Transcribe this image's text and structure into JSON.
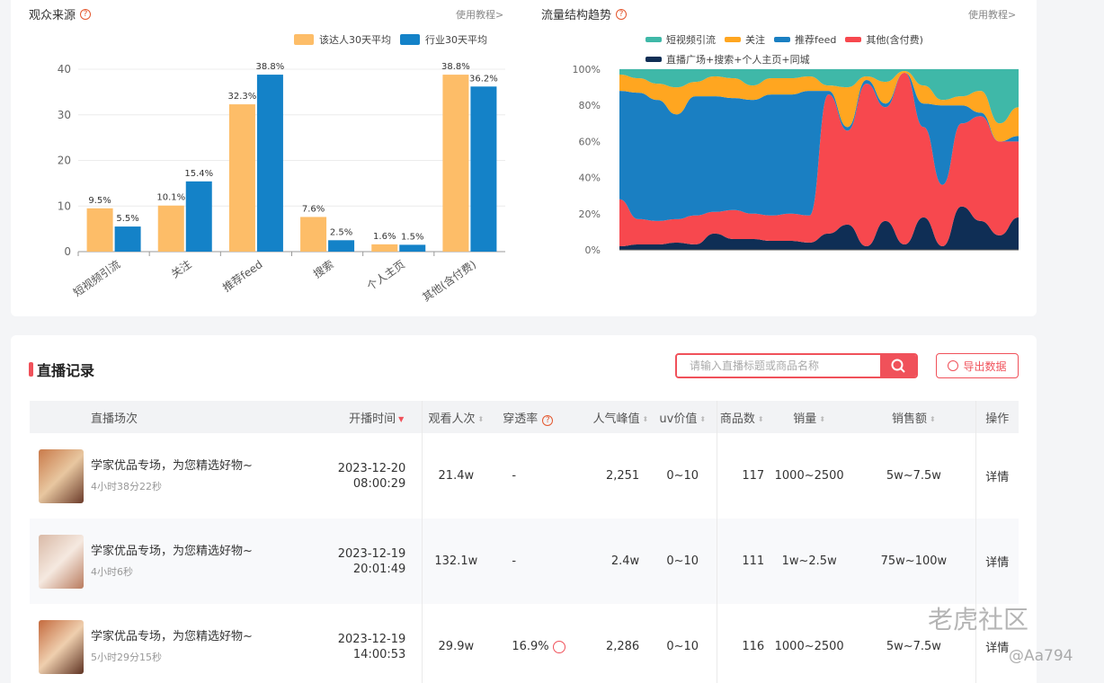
{
  "audience": {
    "title": "观众来源",
    "tutorial": "使用教程>",
    "legend": [
      {
        "label": "该达人30天平均",
        "color": "#fdbd68"
      },
      {
        "label": "行业30天平均",
        "color": "#1482c8"
      }
    ]
  },
  "traffic": {
    "title": "流量结构趋势",
    "tutorial": "使用教程>",
    "legend": [
      {
        "label": "短视频引流",
        "color": "#3fb8a8"
      },
      {
        "label": "关注",
        "color": "#ffa620"
      },
      {
        "label": "推荐feed",
        "color": "#1a7fc2"
      },
      {
        "label": "其他(含付费)",
        "color": "#f7484e"
      },
      {
        "label": "直播广场+搜索+个人主页+同城",
        "color": "#0f2e55"
      }
    ]
  },
  "chart_data": [
    {
      "type": "bar",
      "categories": [
        "短视频引流",
        "关注",
        "推荐feed",
        "搜索",
        "个人主页",
        "其他(含付费)"
      ],
      "series": [
        {
          "name": "该达人30天平均",
          "values": [
            9.5,
            10.1,
            32.3,
            7.6,
            1.6,
            38.8
          ],
          "labels": [
            "9.5%",
            "10.1%",
            "32.3%",
            "7.6%",
            "1.6%",
            "38.8%"
          ]
        },
        {
          "name": "行业30天平均",
          "values": [
            5.5,
            15.4,
            38.8,
            2.5,
            1.5,
            36.2
          ],
          "labels": [
            "5.5%",
            "15.4%",
            "38.8%",
            "2.5%",
            "1.5%",
            "36.2%"
          ]
        }
      ],
      "yticks": [
        "0",
        "10",
        "20",
        "30",
        "40"
      ],
      "ylim": [
        0,
        40
      ]
    },
    {
      "type": "area",
      "stacked": true,
      "yticks": [
        "0%",
        "20%",
        "40%",
        "60%",
        "80%",
        "100%"
      ],
      "ylim": [
        0,
        100
      ],
      "series": [
        {
          "name": "直播广场+搜索+个人主页+同城",
          "values": [
            2,
            3,
            3,
            4,
            3,
            9,
            6,
            6,
            5,
            5,
            4,
            9,
            14,
            2,
            16,
            3,
            18,
            2,
            24,
            16,
            8,
            18
          ]
        },
        {
          "name": "其他(含付费)",
          "values": [
            26,
            14,
            13,
            13,
            16,
            12,
            16,
            14,
            14,
            15,
            15,
            77,
            52,
            90,
            63,
            95,
            50,
            34,
            46,
            58,
            52,
            42
          ]
        },
        {
          "name": "推荐feed",
          "values": [
            60,
            70,
            67,
            58,
            66,
            64,
            62,
            63,
            67,
            66,
            69,
            2,
            2,
            2,
            2,
            0,
            13,
            44,
            10,
            2,
            0,
            3
          ]
        },
        {
          "name": "关注",
          "values": [
            9,
            8,
            9,
            15,
            8,
            11,
            11,
            8,
            9,
            9,
            8,
            3,
            22,
            2,
            12,
            1,
            10,
            3,
            5,
            12,
            10,
            16
          ]
        },
        {
          "name": "短视频引流",
          "values": [
            3,
            5,
            8,
            10,
            7,
            4,
            5,
            9,
            5,
            5,
            4,
            9,
            10,
            4,
            7,
            1,
            9,
            17,
            15,
            12,
            30,
            21
          ]
        }
      ]
    }
  ],
  "records": {
    "title": "直播记录",
    "search_placeholder": "请输入直播标题或商品名称",
    "export_label": "导出数据",
    "columns": [
      "直播场次",
      "开播时间",
      "观看人次",
      "穿透率",
      "人气峰值",
      "uv价值",
      "商品数",
      "销量",
      "销售额",
      "操作"
    ],
    "rows": [
      {
        "title": "学家优品专场，为您精选好物~",
        "duration": "4小时38分22秒",
        "date": "2023-12-20",
        "time": "08:00:29",
        "views": "21.4w",
        "penetration": "-",
        "peak": "2,251",
        "uv": "0~10",
        "goods": "117",
        "sales": "1000~2500",
        "revenue": "5w~7.5w",
        "action": "详情"
      },
      {
        "title": "学家优品专场，为您精选好物~",
        "duration": "4小时6秒",
        "date": "2023-12-19",
        "time": "20:01:49",
        "views": "132.1w",
        "penetration": "-",
        "peak": "2.4w",
        "uv": "0~10",
        "goods": "111",
        "sales": "1w~2.5w",
        "revenue": "75w~100w",
        "action": "详情"
      },
      {
        "title": "学家优品专场，为您精选好物~",
        "duration": "5小时29分15秒",
        "date": "2023-12-19",
        "time": "14:00:53",
        "views": "29.9w",
        "penetration": "16.9%",
        "peak": "2,286",
        "uv": "0~10",
        "goods": "116",
        "sales": "1000~2500",
        "revenue": "5w~7.5w",
        "action": "详情"
      }
    ]
  },
  "watermark": {
    "text": "老虎社区",
    "handle": "@Aa794"
  }
}
